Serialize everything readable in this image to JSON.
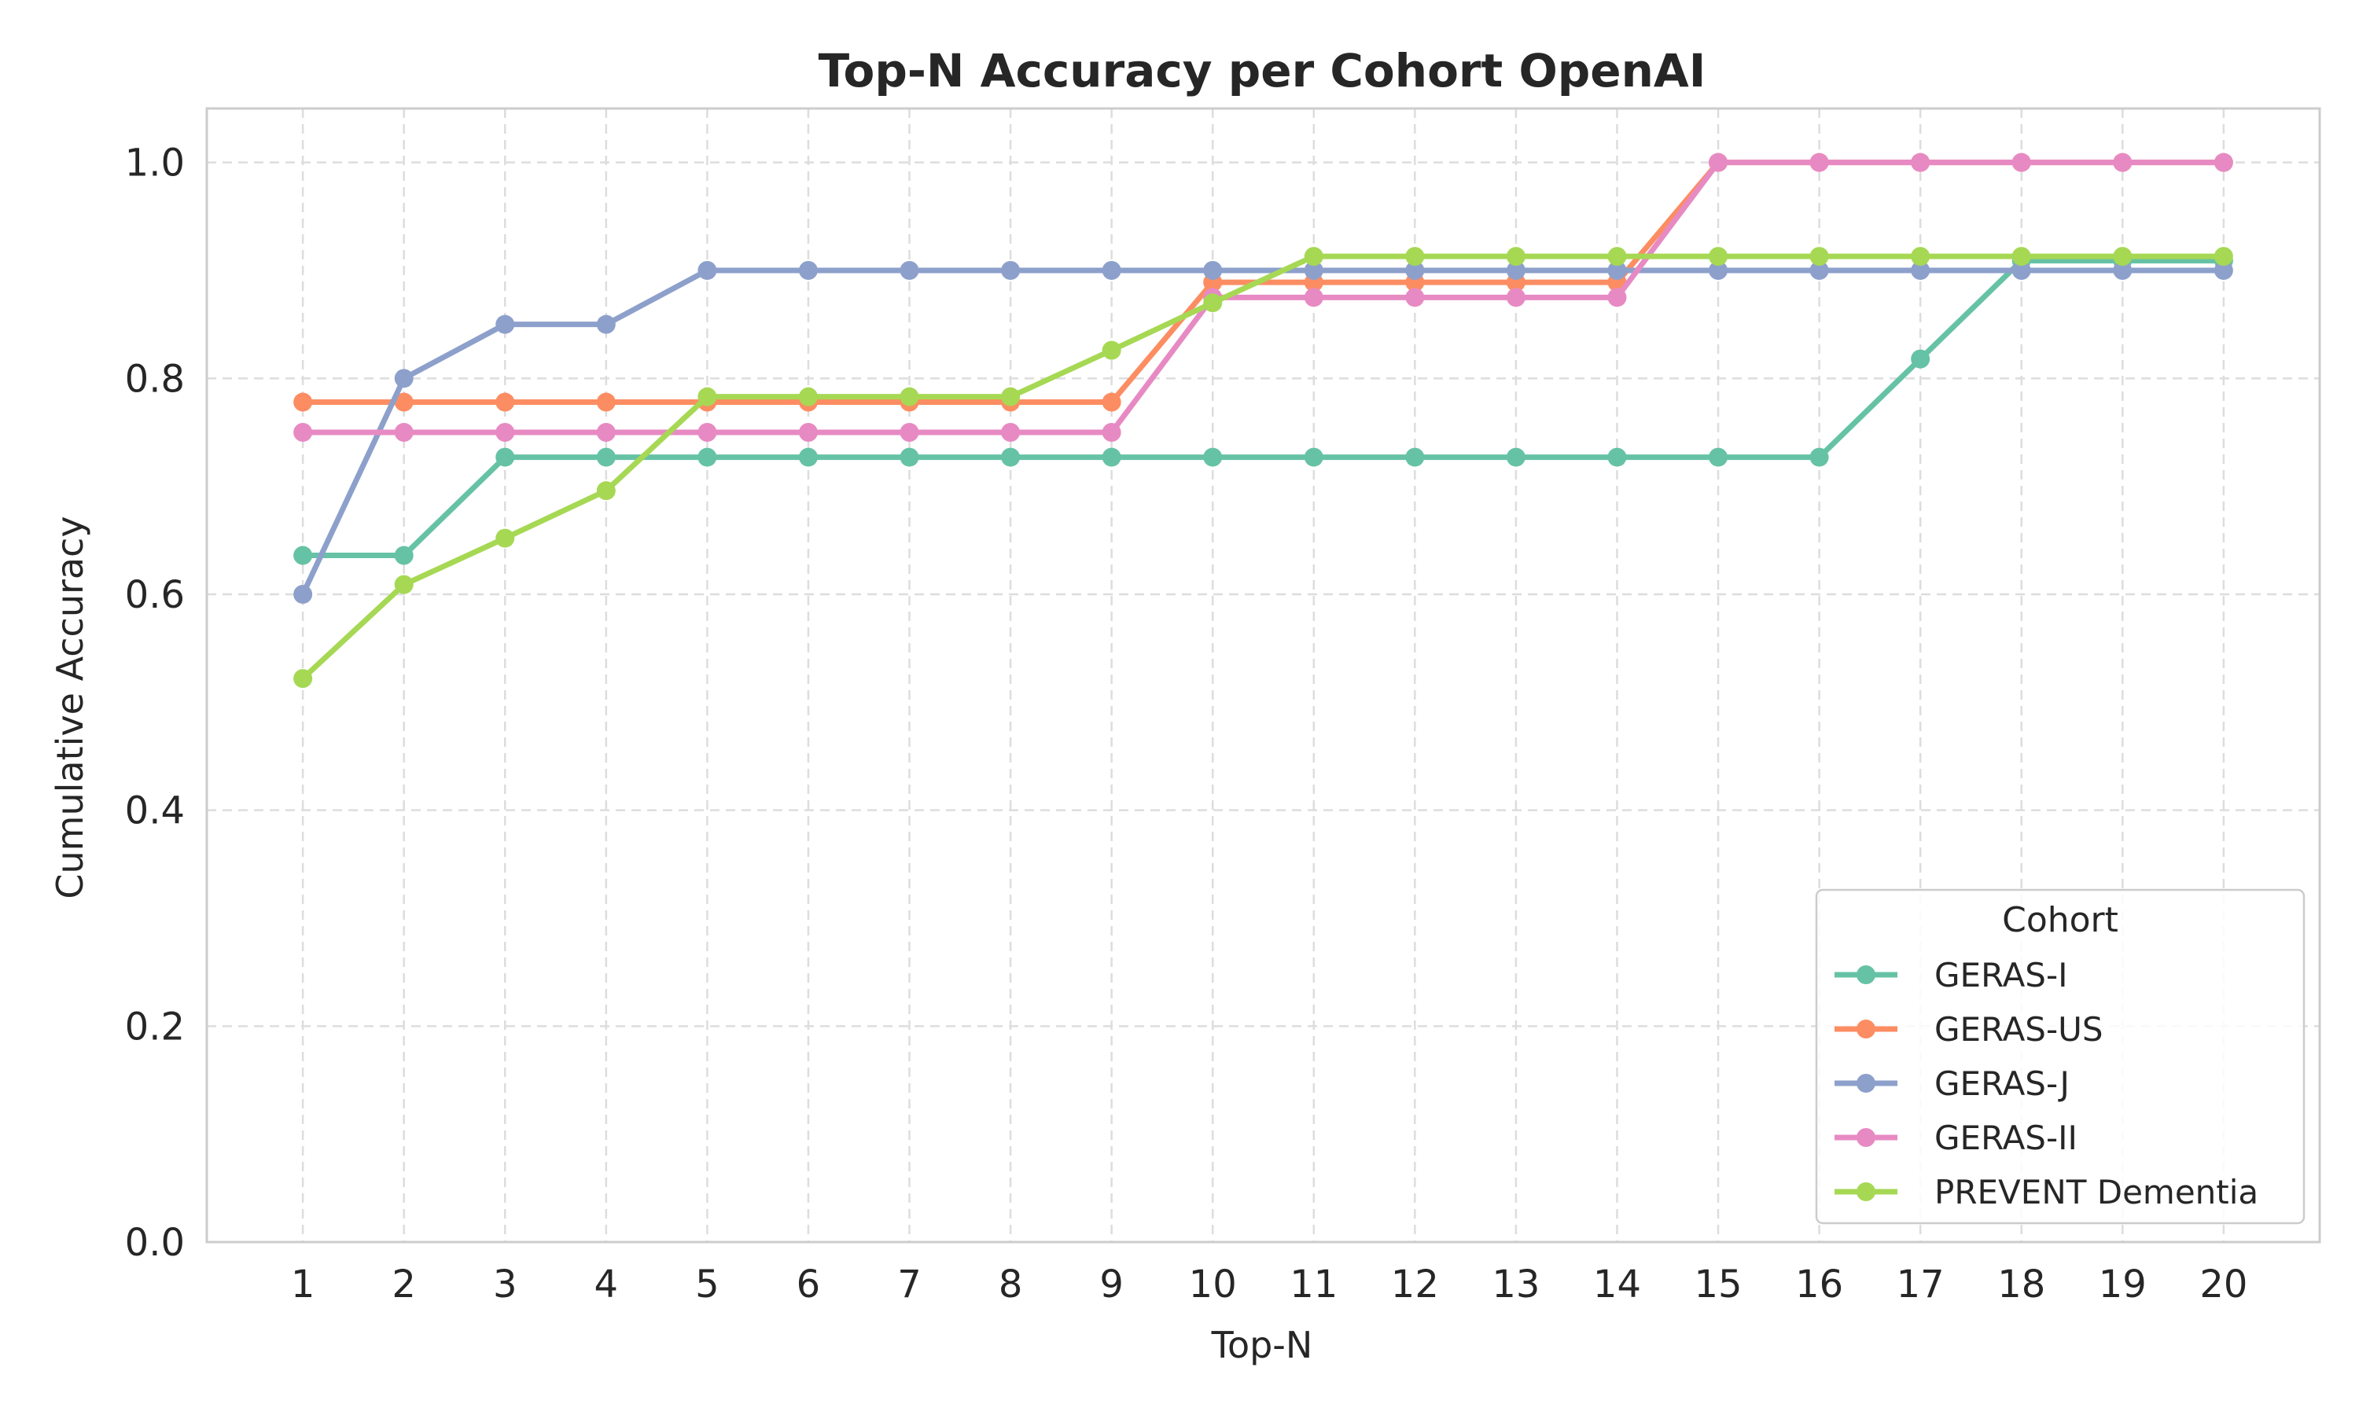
{
  "chart_data": {
    "type": "line",
    "title": "Top-N Accuracy per Cohort OpenAI",
    "xlabel": "Top-N",
    "ylabel": "Cumulative Accuracy",
    "x": [
      1,
      2,
      3,
      4,
      5,
      6,
      7,
      8,
      9,
      10,
      11,
      12,
      13,
      14,
      15,
      16,
      17,
      18,
      19,
      20
    ],
    "xticks": [
      "1",
      "2",
      "3",
      "4",
      "5",
      "6",
      "7",
      "8",
      "9",
      "10",
      "11",
      "12",
      "13",
      "14",
      "15",
      "16",
      "17",
      "18",
      "19",
      "20"
    ],
    "xlim": [
      0.05,
      20.95
    ],
    "ylim": [
      0.0,
      1.05
    ],
    "yticks": [
      "0.0",
      "0.2",
      "0.4",
      "0.6",
      "0.8",
      "1.0"
    ],
    "grid": true,
    "legend": {
      "title": "Cohort",
      "placement": "lower-right"
    },
    "series": [
      {
        "name": "GERAS-I",
        "color": "#66c2a5",
        "values": [
          0.636,
          0.636,
          0.727,
          0.727,
          0.727,
          0.727,
          0.727,
          0.727,
          0.727,
          0.727,
          0.727,
          0.727,
          0.727,
          0.727,
          0.727,
          0.727,
          0.818,
          0.909,
          0.909,
          0.909
        ]
      },
      {
        "name": "GERAS-US",
        "color": "#fc8d62",
        "values": [
          0.778,
          0.778,
          0.778,
          0.778,
          0.778,
          0.778,
          0.778,
          0.778,
          0.778,
          0.889,
          0.889,
          0.889,
          0.889,
          0.889,
          1.0,
          1.0,
          1.0,
          1.0,
          1.0,
          1.0
        ]
      },
      {
        "name": "GERAS-J",
        "color": "#8da0cb",
        "values": [
          0.6,
          0.8,
          0.85,
          0.85,
          0.9,
          0.9,
          0.9,
          0.9,
          0.9,
          0.9,
          0.9,
          0.9,
          0.9,
          0.9,
          0.9,
          0.9,
          0.9,
          0.9,
          0.9,
          0.9
        ]
      },
      {
        "name": "GERAS-II",
        "color": "#e78ac3",
        "values": [
          0.75,
          0.75,
          0.75,
          0.75,
          0.75,
          0.75,
          0.75,
          0.75,
          0.75,
          0.875,
          0.875,
          0.875,
          0.875,
          0.875,
          1.0,
          1.0,
          1.0,
          1.0,
          1.0,
          1.0
        ]
      },
      {
        "name": "PREVENT Dementia",
        "color": "#a6d854",
        "values": [
          0.522,
          0.609,
          0.652,
          0.696,
          0.783,
          0.783,
          0.783,
          0.783,
          0.826,
          0.87,
          0.913,
          0.913,
          0.913,
          0.913,
          0.913,
          0.913,
          0.913,
          0.913,
          0.913,
          0.913
        ]
      }
    ]
  }
}
